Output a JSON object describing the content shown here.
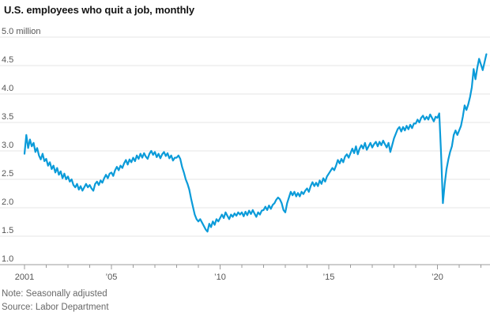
{
  "header": {
    "title": "U.S. employees who quit a job, monthly"
  },
  "footer": {
    "note": "Note: Seasonally adjusted",
    "source": "Source: Labor Department"
  },
  "colors": {
    "line": "#0b9bd9",
    "grid": "#e6e6e6",
    "axis": "#9b9b9b",
    "tick_label": "#555555",
    "note_text": "#686868",
    "title_text": "#141414"
  },
  "chart_data": {
    "type": "line",
    "title": "U.S. employees who quit a job, monthly",
    "unit": "million",
    "note": "Note: Seasonally adjusted",
    "source": "Source: Labor Department",
    "y_axis": {
      "ticks": [
        5.0,
        4.5,
        4.0,
        3.5,
        3.0,
        2.5,
        2.0,
        1.5,
        1.0
      ],
      "top_label": "5.0 million",
      "ylim": [
        1.0,
        5.0
      ],
      "grid": true
    },
    "x_axis": {
      "start": "2001-01",
      "end": "2022-04",
      "frequency": "monthly",
      "minor_ticks": "every year",
      "labels": [
        {
          "year": 2001,
          "text": "2001"
        },
        {
          "year": 2005,
          "text": "’05"
        },
        {
          "year": 2010,
          "text": "’10"
        },
        {
          "year": 2015,
          "text": "’15"
        },
        {
          "year": 2020,
          "text": "’20"
        }
      ]
    },
    "series": [
      {
        "name": "U.S. employees who quit a job",
        "color": "#0b9bd9",
        "start_year": 2001,
        "start_month": 1,
        "frequency": "monthly",
        "values": [
          2.95,
          3.28,
          3.05,
          3.2,
          3.08,
          3.14,
          2.98,
          3.05,
          2.92,
          2.85,
          2.95,
          2.82,
          2.86,
          2.74,
          2.8,
          2.68,
          2.74,
          2.62,
          2.7,
          2.58,
          2.64,
          2.52,
          2.6,
          2.5,
          2.55,
          2.46,
          2.5,
          2.4,
          2.36,
          2.42,
          2.32,
          2.38,
          2.3,
          2.36,
          2.42,
          2.36,
          2.4,
          2.34,
          2.3,
          2.42,
          2.46,
          2.4,
          2.48,
          2.44,
          2.52,
          2.58,
          2.52,
          2.6,
          2.62,
          2.56,
          2.66,
          2.72,
          2.66,
          2.74,
          2.7,
          2.78,
          2.84,
          2.76,
          2.85,
          2.8,
          2.88,
          2.82,
          2.92,
          2.86,
          2.95,
          2.88,
          2.96,
          2.9,
          2.86,
          2.95,
          3.0,
          2.93,
          2.98,
          2.89,
          2.95,
          2.87,
          2.94,
          2.98,
          2.91,
          2.96,
          2.87,
          2.92,
          2.83,
          2.88,
          2.88,
          2.92,
          2.86,
          2.72,
          2.62,
          2.5,
          2.42,
          2.32,
          2.16,
          2.02,
          1.88,
          1.8,
          1.76,
          1.8,
          1.74,
          1.68,
          1.62,
          1.58,
          1.72,
          1.66,
          1.76,
          1.7,
          1.8,
          1.76,
          1.82,
          1.88,
          1.82,
          1.92,
          1.86,
          1.8,
          1.88,
          1.84,
          1.9,
          1.86,
          1.92,
          1.88,
          1.92,
          1.85,
          1.93,
          1.87,
          1.95,
          1.89,
          1.96,
          1.9,
          1.84,
          1.92,
          1.88,
          1.95,
          1.96,
          2.02,
          1.96,
          2.04,
          1.98,
          2.05,
          2.08,
          2.14,
          2.18,
          2.15,
          2.08,
          1.96,
          1.92,
          2.08,
          2.18,
          2.28,
          2.22,
          2.28,
          2.2,
          2.26,
          2.2,
          2.28,
          2.24,
          2.3,
          2.34,
          2.28,
          2.38,
          2.45,
          2.38,
          2.44,
          2.38,
          2.48,
          2.42,
          2.52,
          2.46,
          2.55,
          2.6,
          2.65,
          2.7,
          2.66,
          2.74,
          2.84,
          2.78,
          2.86,
          2.8,
          2.9,
          2.94,
          2.88,
          2.96,
          3.04,
          2.96,
          3.08,
          2.94,
          3.04,
          3.1,
          3.04,
          3.14,
          3.02,
          3.08,
          3.14,
          3.06,
          3.12,
          3.16,
          3.08,
          3.16,
          3.1,
          3.18,
          3.12,
          3.06,
          3.14,
          2.98,
          3.1,
          3.22,
          3.3,
          3.38,
          3.42,
          3.34,
          3.42,
          3.36,
          3.44,
          3.38,
          3.46,
          3.4,
          3.48,
          3.48,
          3.55,
          3.5,
          3.58,
          3.62,
          3.55,
          3.6,
          3.55,
          3.64,
          3.58,
          3.52,
          3.6,
          3.58,
          3.66,
          2.95,
          2.08,
          2.42,
          2.68,
          2.85,
          2.98,
          3.08,
          3.28,
          3.36,
          3.28,
          3.36,
          3.44,
          3.6,
          3.8,
          3.72,
          3.82,
          3.95,
          4.12,
          4.44,
          4.26,
          4.46,
          4.62,
          4.52,
          4.42,
          4.56,
          4.7
        ]
      }
    ]
  }
}
